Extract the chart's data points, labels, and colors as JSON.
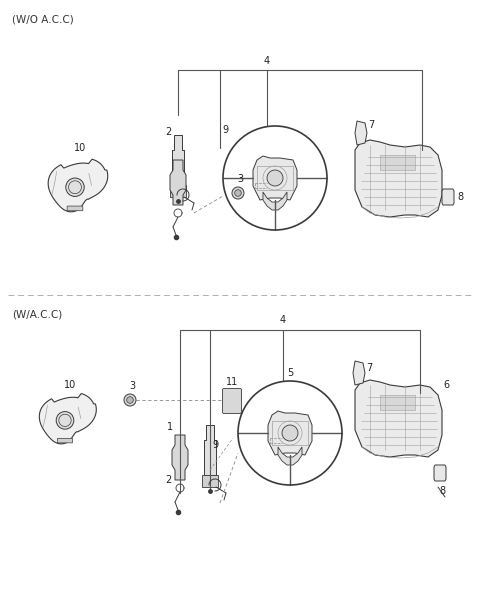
{
  "background_color": "#ffffff",
  "section1_label": "(W/O A.C.C)",
  "section2_label": "(W/A.C.C)",
  "parts_color": "#3a3a3a",
  "line_color": "#555555",
  "label_color": "#222222",
  "dashed_color": "#888888",
  "light_gray": "#c8c8c8",
  "mid_gray": "#a0a0a0"
}
